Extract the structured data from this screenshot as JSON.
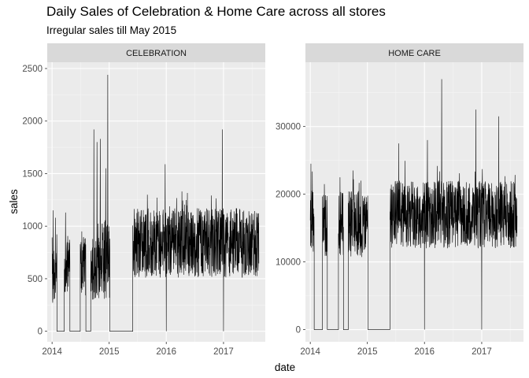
{
  "title": "Daily Sales of Celebration & Home Care across all stores",
  "subtitle": "Irregular sales till May 2015",
  "chart_data": {
    "type": "line",
    "xlabel": "date",
    "ylabel": "sales",
    "grid": true,
    "x_ticks": [
      "2014",
      "2015",
      "2016",
      "2017"
    ],
    "facets": [
      {
        "name": "CELEBRATION",
        "ylim": [
          -100,
          2560
        ],
        "y_ticks": [
          0,
          500,
          1000,
          1500,
          2000,
          2500
        ],
        "segments": [
          {
            "start": "2014-01-01",
            "end": "2014-02-01",
            "base": 600,
            "amp": 330,
            "seed": 11,
            "spikes": [
              {
                "date": "2014-01-08",
                "value": 1150
              },
              {
                "date": "2014-01-22",
                "value": 1080
              }
            ]
          },
          {
            "start": "2014-02-01",
            "end": "2014-03-20",
            "base": 0,
            "amp": 0,
            "seed": 0
          },
          {
            "start": "2014-03-20",
            "end": "2014-04-25",
            "base": 650,
            "amp": 300,
            "seed": 12,
            "spikes": [
              {
                "date": "2014-03-28",
                "value": 1130
              }
            ]
          },
          {
            "start": "2014-04-25",
            "end": "2014-06-30",
            "base": 0,
            "amp": 0,
            "seed": 0
          },
          {
            "start": "2014-06-30",
            "end": "2014-08-05",
            "base": 620,
            "amp": 300,
            "seed": 13,
            "spikes": [
              {
                "date": "2014-07-10",
                "value": 950
              }
            ]
          },
          {
            "start": "2014-08-05",
            "end": "2014-09-05",
            "base": 0,
            "amp": 0,
            "seed": 0
          },
          {
            "start": "2014-09-05",
            "end": "2015-01-05",
            "base": 680,
            "amp": 380,
            "seed": 14,
            "spikes": [
              {
                "date": "2014-09-25",
                "value": 1920
              },
              {
                "date": "2014-10-15",
                "value": 1800
              },
              {
                "date": "2014-11-05",
                "value": 1830
              },
              {
                "date": "2014-12-23",
                "value": 2440
              },
              {
                "date": "2014-12-10",
                "value": 1550
              }
            ]
          },
          {
            "start": "2015-01-05",
            "end": "2015-06-01",
            "base": 0,
            "amp": 0,
            "seed": 0
          },
          {
            "start": "2015-06-01",
            "end": "2017-08-15",
            "base": 840,
            "amp": 330,
            "seed": 15,
            "spikes": [
              {
                "date": "2015-12-25",
                "value": 1590
              },
              {
                "date": "2016-12-24",
                "value": 1920
              },
              {
                "date": "2016-04-10",
                "value": 1330
              }
            ],
            "dips": [
              "2016-01-01",
              "2017-01-01"
            ]
          }
        ]
      },
      {
        "name": "HOME CARE",
        "ylim": [
          -1800,
          39500
        ],
        "y_ticks": [
          0,
          10000,
          20000,
          30000
        ],
        "segments": [
          {
            "start": "2014-01-01",
            "end": "2014-01-26",
            "base": 16500,
            "amp": 5000,
            "seed": 21,
            "spikes": [
              {
                "date": "2014-01-05",
                "value": 24500
              }
            ]
          },
          {
            "start": "2014-01-26",
            "end": "2014-03-20",
            "base": 0,
            "amp": 0,
            "seed": 0
          },
          {
            "start": "2014-03-20",
            "end": "2014-04-20",
            "base": 15500,
            "amp": 5000,
            "seed": 22,
            "spikes": [
              {
                "date": "2014-04-01",
                "value": 21500
              }
            ]
          },
          {
            "start": "2014-04-20",
            "end": "2014-06-30",
            "base": 0,
            "amp": 0,
            "seed": 0
          },
          {
            "start": "2014-06-30",
            "end": "2014-08-01",
            "base": 15500,
            "amp": 5000,
            "seed": 23,
            "spikes": [
              {
                "date": "2014-07-10",
                "value": 22500
              }
            ]
          },
          {
            "start": "2014-08-01",
            "end": "2014-09-01",
            "base": 0,
            "amp": 0,
            "seed": 0
          },
          {
            "start": "2014-09-01",
            "end": "2015-01-05",
            "base": 15500,
            "amp": 5000,
            "seed": 24,
            "spikes": [
              {
                "date": "2014-10-01",
                "value": 23500
              },
              {
                "date": "2014-11-20",
                "value": 22000
              }
            ]
          },
          {
            "start": "2015-01-05",
            "end": "2015-05-25",
            "base": 0,
            "amp": 0,
            "seed": 0
          },
          {
            "start": "2015-05-25",
            "end": "2017-08-15",
            "base": 17000,
            "amp": 5000,
            "seed": 25,
            "spikes": [
              {
                "date": "2016-04-20",
                "value": 37000
              },
              {
                "date": "2016-11-25",
                "value": 32500
              },
              {
                "date": "2017-04-20",
                "value": 31500
              },
              {
                "date": "2016-01-20",
                "value": 28000
              },
              {
                "date": "2015-07-20",
                "value": 27500
              }
            ],
            "dips": [
              "2016-01-01",
              "2017-01-01"
            ]
          }
        ]
      }
    ]
  }
}
